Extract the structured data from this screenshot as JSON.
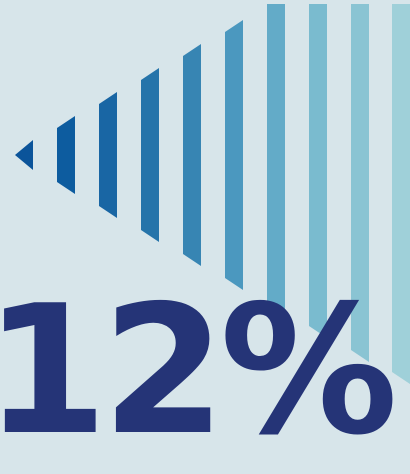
{
  "headline_value": "12%",
  "colors": {
    "background": "#d7e5ea",
    "headline": "#253477",
    "stripe_start": "#0b549a",
    "stripe_end": "#b9dde2"
  },
  "stripe_colors": [
    "#0b549a",
    "#0d5c9f",
    "#1966a4",
    "#2574aa",
    "#3785b3",
    "#4b98bf",
    "#63abc8",
    "#7abbcf",
    "#8ac4d3",
    "#9fd0d9",
    "#b0d8de"
  ]
}
